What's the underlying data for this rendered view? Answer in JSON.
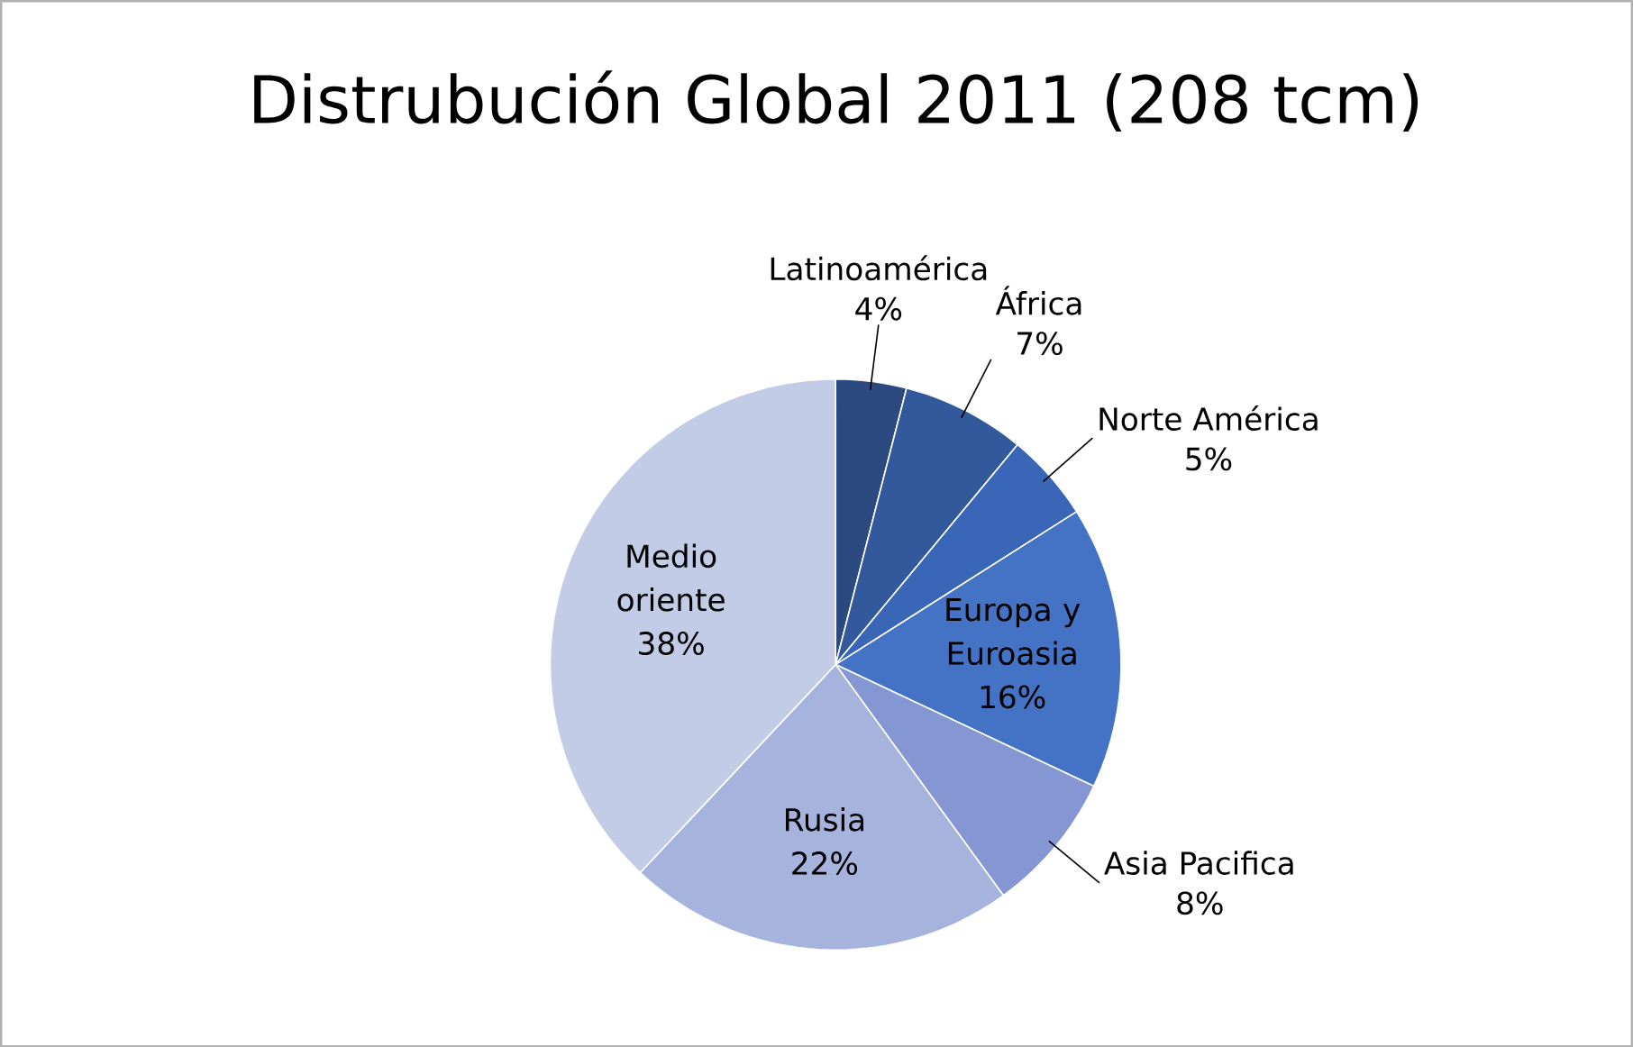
{
  "chart_data": {
    "type": "pie",
    "title": "Distrubución Global 2011 (208 tcm)",
    "categories": [
      "Latinoamérica",
      "África",
      "Norte América",
      "Europa y Euroasia",
      "Asia Pacifica",
      "Rusia",
      "Medio oriente"
    ],
    "values": [
      4,
      7,
      5,
      16,
      8,
      22,
      38
    ],
    "value_labels": [
      "4%",
      "7%",
      "5%",
      "16%",
      "8%",
      "22%",
      "38%"
    ],
    "colors": [
      "#2c4a80",
      "#32599c",
      "#3966b6",
      "#4472c4",
      "#8497d2",
      "#a5b3dd",
      "#c3cce7"
    ]
  }
}
